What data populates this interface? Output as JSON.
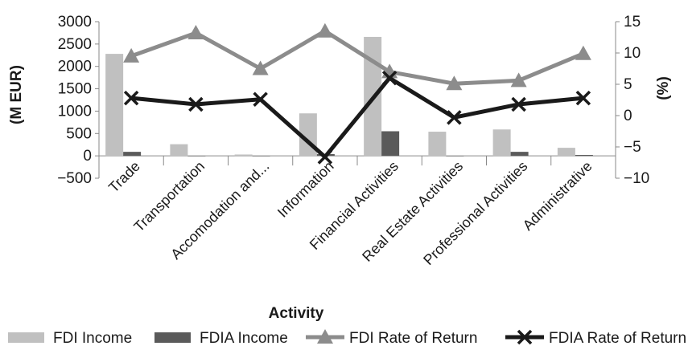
{
  "chart_data": {
    "type": "bar+line",
    "xlabel": "Activity",
    "ylabel_left": "(M EUR)",
    "ylabel_right": "(%)",
    "ylim_left": [
      -500,
      3000
    ],
    "yticks_left": [
      "-500",
      "0",
      "500",
      "1000",
      "1500",
      "2000",
      "2500",
      "3000"
    ],
    "ylim_right": [
      -10,
      15
    ],
    "yticks_right": [
      "-10",
      "-5",
      "0",
      "5",
      "10",
      "15"
    ],
    "categories": [
      "Trade",
      "Transportation",
      "Accomodation and...",
      "Information",
      "Financial Activities",
      "Real Estate Activities",
      "Professional Activities",
      "Administrative"
    ],
    "series": [
      {
        "name": "FDI Income",
        "type": "bar",
        "axis": "left",
        "color": "#c0c0c0",
        "values": [
          2280,
          260,
          30,
          950,
          2660,
          540,
          590,
          180
        ]
      },
      {
        "name": "FDIA Income",
        "type": "bar",
        "axis": "left",
        "color": "#5a5a5a",
        "values": [
          90,
          0,
          0,
          40,
          550,
          0,
          90,
          20
        ]
      },
      {
        "name": "FDI Rate of Return",
        "type": "line",
        "axis": "right",
        "marker": "triangle",
        "color": "#8c8c8c",
        "values": [
          9.5,
          13.2,
          7.5,
          13.5,
          7.0,
          5.1,
          5.6,
          9.9
        ]
      },
      {
        "name": "FDIA Rate of Return",
        "type": "line",
        "axis": "right",
        "marker": "x",
        "color": "#1a1a1a",
        "values": [
          2.8,
          1.8,
          2.6,
          -6.6,
          6.0,
          -0.3,
          1.8,
          2.8
        ]
      }
    ],
    "legend_position": "bottom",
    "grid": false
  }
}
